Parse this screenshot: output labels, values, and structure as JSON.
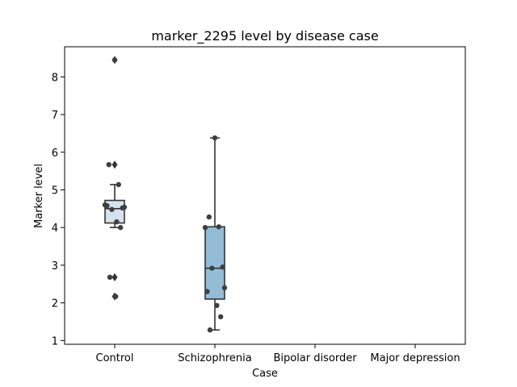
{
  "chart_data": {
    "type": "box",
    "title": "marker_2295 level by disease case",
    "xlabel": "Case",
    "ylabel": "Marker level",
    "categories": [
      "Control",
      "Schizophrenia",
      "Bipolar disorder",
      "Major depression"
    ],
    "ylim": [
      0.9,
      8.8
    ],
    "yticks": [
      1,
      2,
      3,
      4,
      5,
      6,
      7,
      8
    ],
    "box_colors": [
      "#d6e3ee",
      "#93bdd7"
    ],
    "point_color": "#3f3f3f",
    "line_color": "#333333",
    "boxes": [
      {
        "category": "Control",
        "whisker_low": 4.0,
        "q1": 4.12,
        "median": 4.5,
        "q3": 4.72,
        "whisker_high": 5.14,
        "fliers": [
          8.45,
          5.67,
          2.68,
          2.17
        ]
      },
      {
        "category": "Schizophrenia",
        "whisker_low": 1.28,
        "q1": 2.1,
        "median": 2.92,
        "q3": 4.02,
        "whisker_high": 6.38,
        "fliers": []
      },
      {
        "category": "Bipolar disorder"
      },
      {
        "category": "Major depression"
      }
    ],
    "points": [
      {
        "category": "Control",
        "values": [
          8.45,
          5.67,
          5.14,
          4.6,
          4.52,
          4.48,
          4.54,
          4.58,
          4.15,
          4.0,
          2.68,
          2.17
        ]
      },
      {
        "category": "Schizophrenia",
        "values": [
          6.38,
          4.28,
          4.02,
          4.0,
          2.95,
          2.92,
          2.4,
          2.3,
          1.93,
          1.63,
          1.28
        ]
      },
      {
        "category": "Bipolar disorder",
        "values": []
      },
      {
        "category": "Major depression",
        "values": []
      }
    ]
  }
}
